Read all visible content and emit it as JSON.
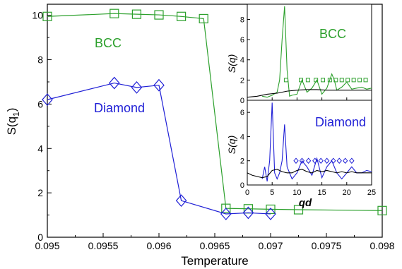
{
  "chart_data": [
    {
      "type": "line",
      "xlabel": "Temperature",
      "ylabel": "S(q1)",
      "ylabel_main": "S(q",
      "ylabel_sub": "1",
      "ylabel_close": ")",
      "xlim": [
        0.095,
        0.098
      ],
      "ylim": [
        0,
        10.5
      ],
      "xticks": [
        "0.095",
        "0.0955",
        "0.096",
        "0.0965",
        "0.097",
        "0.0975",
        "0.098"
      ],
      "xtick_values": [
        0.095,
        0.0955,
        0.096,
        0.0965,
        0.097,
        0.0975,
        0.098
      ],
      "yticks": [
        "0",
        "2",
        "4",
        "6",
        "8",
        "10"
      ],
      "ytick_values": [
        0,
        2,
        4,
        6,
        8,
        10
      ],
      "series": [
        {
          "name": "BCC",
          "color": "#2ca02c",
          "marker": "square",
          "x": [
            0.095,
            0.0956,
            0.0958,
            0.096,
            0.0962,
            0.0964,
            0.0966,
            0.0968,
            0.097,
            0.09725,
            0.098
          ],
          "y": [
            9.95,
            10.08,
            10.05,
            10.02,
            9.95,
            9.85,
            1.3,
            1.28,
            1.26,
            1.24,
            1.2
          ]
        },
        {
          "name": "Diamond",
          "color": "#1f1fd6",
          "marker": "diamond",
          "x": [
            0.095,
            0.0956,
            0.0958,
            0.096,
            0.0962,
            0.0966,
            0.0968,
            0.097
          ],
          "y": [
            6.2,
            6.95,
            6.75,
            6.85,
            1.65,
            1.05,
            1.1,
            1.05
          ]
        }
      ],
      "labels": {
        "bcc": "BCC",
        "diamond": "Diamond"
      }
    },
    {
      "type": "line",
      "panel": "inset-top",
      "title": "BCC",
      "ylabel": "S(q)",
      "ylim": [
        0,
        9.5
      ],
      "xlim": [
        0,
        25
      ],
      "yticks": [
        "0",
        "2",
        "4",
        "6",
        "8"
      ],
      "ytick_values": [
        0,
        2,
        4,
        6,
        8
      ],
      "series": [
        {
          "color": "#2ca02c",
          "x": [
            3,
            4,
            5,
            6,
            6.5,
            7,
            7.5,
            8,
            8.5,
            9,
            10,
            11,
            12,
            13,
            14,
            15,
            16,
            17,
            17.5,
            18,
            19,
            20,
            21,
            22,
            23,
            24,
            25
          ],
          "y": [
            0.4,
            0.3,
            0.5,
            0.8,
            2.0,
            6.0,
            9.3,
            3.0,
            0.4,
            0.5,
            0.6,
            2.0,
            0.8,
            1.2,
            2.0,
            0.6,
            1.2,
            2.6,
            2.0,
            1.0,
            1.3,
            1.8,
            1.1,
            1.2,
            1.3,
            1.1,
            1.2
          ]
        },
        {
          "color": "#000000",
          "x": [
            0,
            2,
            4,
            6,
            8,
            10,
            12,
            14,
            16,
            18,
            20,
            22,
            24,
            25
          ],
          "y": [
            0.3,
            0.4,
            0.6,
            0.7,
            0.9,
            1.0,
            1.05,
            1.05,
            1.0,
            1.0,
            1.0,
            1.0,
            1.0,
            1.0
          ]
        },
        {
          "color": "#2ca02c",
          "marker": "square-small",
          "line": false,
          "x": [
            7.8,
            10.8,
            12.2,
            13.8,
            15.2,
            16.6,
            17.8,
            19.0,
            20.2,
            21.4,
            22.6,
            23.8
          ],
          "y": [
            2,
            2,
            2,
            2,
            2,
            2,
            2,
            2,
            2,
            2,
            2,
            2
          ]
        }
      ]
    },
    {
      "type": "line",
      "panel": "inset-bottom",
      "title": "Diamond",
      "ylabel": "S(q)",
      "xlabel": "qd",
      "ylim": [
        0,
        7
      ],
      "xlim": [
        0,
        25
      ],
      "xticks": [
        "0",
        "5",
        "10",
        "15",
        "20",
        "25"
      ],
      "xtick_values": [
        0,
        5,
        10,
        15,
        20,
        25
      ],
      "yticks": [
        "0",
        "2",
        "4",
        "6"
      ],
      "ytick_values": [
        0,
        2,
        4,
        6
      ],
      "series": [
        {
          "color": "#1f1fd6",
          "x": [
            3,
            3.5,
            4,
            4.5,
            5,
            5.5,
            6,
            6.5,
            7,
            7.5,
            8,
            8.5,
            9,
            10,
            11,
            12,
            13,
            14,
            15,
            16,
            17,
            18,
            19,
            20,
            21,
            22,
            23,
            24,
            25
          ],
          "y": [
            0.5,
            1.5,
            0.3,
            2.0,
            6.8,
            1.0,
            0.5,
            1.0,
            2.0,
            5.0,
            1.5,
            1.0,
            0.5,
            1.0,
            2.0,
            1.5,
            0.8,
            2.2,
            0.6,
            1.5,
            2.0,
            1.0,
            0.5,
            1.0,
            1.5,
            1.0,
            1.0,
            1.2,
            1.1
          ]
        },
        {
          "color": "#000000",
          "x": [
            0,
            1,
            2,
            3,
            4,
            5,
            6,
            7,
            8,
            9,
            10,
            11,
            12,
            13,
            14,
            15,
            16,
            17,
            18,
            19,
            20,
            21,
            22,
            23,
            24,
            25
          ],
          "y": [
            1.0,
            0.8,
            0.7,
            0.6,
            0.7,
            1.2,
            1.3,
            1.1,
            1.0,
            1.0,
            1.2,
            1.3,
            1.1,
            1.0,
            1.2,
            1.1,
            1.2,
            1.1,
            1.0,
            1.1,
            1.0,
            1.1,
            1.0,
            1.0,
            1.0,
            1.0
          ]
        },
        {
          "color": "#1f1fd6",
          "marker": "diamond-small",
          "line": false,
          "x": [
            9.8,
            11,
            12.3,
            13.6,
            14.8,
            16,
            17.3,
            18.5,
            19.7,
            21
          ],
          "y": [
            2,
            2,
            2,
            2,
            2,
            2,
            2,
            2,
            2,
            2
          ]
        }
      ]
    }
  ]
}
